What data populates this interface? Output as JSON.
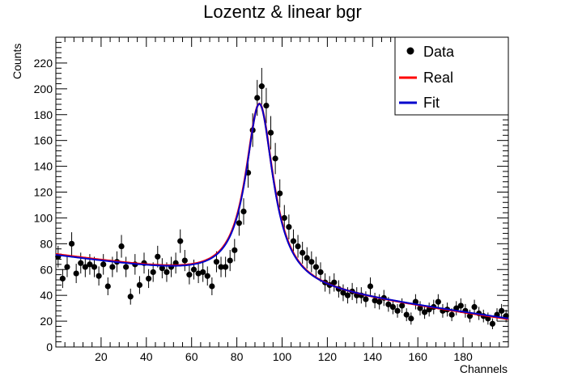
{
  "chart_data": {
    "type": "scatter",
    "title": "Lozentz & linear bgr",
    "xlabel": "Channels",
    "ylabel": "Counts",
    "xlim": [
      0,
      200
    ],
    "ylim": [
      0,
      240
    ],
    "x_ticks": [
      20,
      40,
      60,
      80,
      100,
      120,
      140,
      160,
      180
    ],
    "y_ticks": [
      0,
      20,
      40,
      60,
      80,
      100,
      120,
      140,
      160,
      180,
      200,
      220
    ],
    "grid": false,
    "legend_position": "top-right",
    "series": [
      {
        "name": "Data",
        "kind": "points_with_error_bars",
        "color": "#000000",
        "x": [
          1,
          3,
          5,
          7,
          9,
          11,
          13,
          15,
          17,
          19,
          21,
          23,
          25,
          27,
          29,
          31,
          33,
          35,
          37,
          39,
          41,
          43,
          45,
          47,
          49,
          51,
          53,
          55,
          57,
          59,
          61,
          63,
          65,
          67,
          69,
          71,
          73,
          75,
          77,
          79,
          81,
          83,
          85,
          87,
          89,
          91,
          93,
          95,
          97,
          99,
          101,
          103,
          105,
          107,
          109,
          111,
          113,
          115,
          117,
          119,
          121,
          123,
          125,
          127,
          129,
          131,
          133,
          135,
          137,
          139,
          141,
          143,
          145,
          147,
          149,
          151,
          153,
          155,
          157,
          159,
          161,
          163,
          165,
          167,
          169,
          171,
          173,
          175,
          177,
          179,
          181,
          183,
          185,
          187,
          189,
          191,
          193,
          195,
          197,
          199
        ],
        "y": [
          70,
          53,
          62,
          80,
          57,
          65,
          62,
          64,
          62,
          55,
          64,
          47,
          62,
          66,
          78,
          62,
          39,
          64,
          48,
          65,
          53,
          58,
          70,
          61,
          58,
          62,
          65,
          82,
          67,
          56,
          60,
          57,
          58,
          55,
          47,
          66,
          62,
          62,
          67,
          75,
          96,
          105,
          135,
          168,
          193,
          202,
          187,
          166,
          146,
          119,
          100,
          93,
          82,
          78,
          73,
          69,
          66,
          62,
          58,
          50,
          48,
          50,
          45,
          42,
          40,
          43,
          40,
          40,
          37,
          47,
          36,
          35,
          38,
          33,
          31,
          28,
          32,
          25,
          22,
          35,
          30,
          27,
          29,
          31,
          35,
          28,
          29,
          25,
          30,
          32,
          28,
          24,
          31,
          26,
          24,
          22,
          18,
          25,
          28,
          24
        ],
        "yerr": [
          8.4,
          7.3,
          7.9,
          8.9,
          7.5,
          8.1,
          7.9,
          8.0,
          7.9,
          7.4,
          8.0,
          6.9,
          7.9,
          8.1,
          8.8,
          7.9,
          6.2,
          8.0,
          6.9,
          8.1,
          7.3,
          7.6,
          8.4,
          7.8,
          7.6,
          7.9,
          8.1,
          9.1,
          8.2,
          7.5,
          7.7,
          7.5,
          7.6,
          7.4,
          6.9,
          8.1,
          7.9,
          7.9,
          8.2,
          8.7,
          9.8,
          10.2,
          11.6,
          13.0,
          13.9,
          14.2,
          13.7,
          12.9,
          12.1,
          10.9,
          10.0,
          9.6,
          9.1,
          8.8,
          8.5,
          8.3,
          8.1,
          7.9,
          7.6,
          7.1,
          6.9,
          7.1,
          6.7,
          6.5,
          6.3,
          6.6,
          6.3,
          6.3,
          6.1,
          6.9,
          6.0,
          5.9,
          6.2,
          5.7,
          5.6,
          5.3,
          5.7,
          5.0,
          4.7,
          5.9,
          5.5,
          5.2,
          5.4,
          5.6,
          5.9,
          5.3,
          5.4,
          5.0,
          5.5,
          5.7,
          5.3,
          4.9,
          5.6,
          5.1,
          4.9,
          4.7,
          4.2,
          5.0,
          5.3,
          4.9
        ]
      },
      {
        "name": "Real",
        "kind": "line",
        "color": "#ff0000",
        "model": "lorentzian_plus_linear",
        "params": {
          "x0": 90,
          "gamma": 7.5,
          "amplitude": 140,
          "offset": 71,
          "slope": -0.25
        }
      },
      {
        "name": "Fit",
        "kind": "line",
        "color": "#0000cc",
        "model": "lorentzian_plus_linear",
        "params": {
          "x0": 90,
          "gamma": 7.4,
          "amplitude": 140,
          "offset": 70.5,
          "slope": -0.245
        }
      }
    ]
  }
}
